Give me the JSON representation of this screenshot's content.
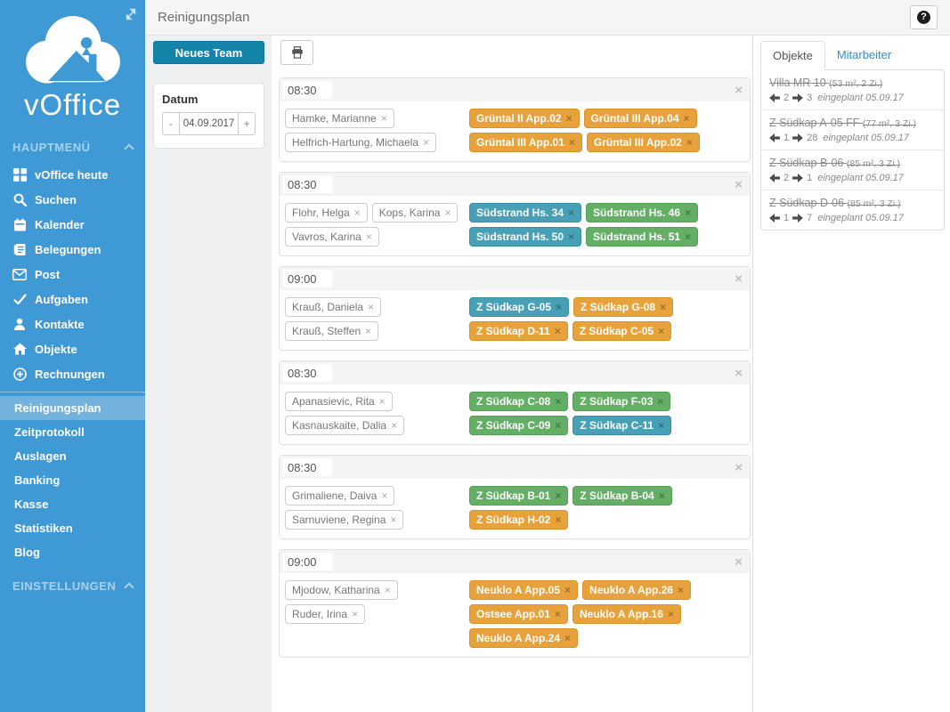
{
  "icons": {
    "close": "×"
  },
  "colors": {
    "sidebar_blue": "#3e99d5",
    "sidebar_selected": "#72b2dd",
    "accent_teal_button": "#1484a8",
    "tag_orange": "#e8a23c",
    "tag_teal": "#47a0b5",
    "tag_green": "#64af65",
    "panel_link_blue": "#2e8fd4"
  },
  "sidebar": {
    "logo_text": "vOffice",
    "main_section_label": "HAUPTMENÜ",
    "main_items": [
      {
        "label": "vOffice heute",
        "icon": "grid"
      },
      {
        "label": "Suchen",
        "icon": "search"
      },
      {
        "label": "Kalender",
        "icon": "calendar"
      },
      {
        "label": "Belegungen",
        "icon": "journal"
      },
      {
        "label": "Post",
        "icon": "envelope"
      },
      {
        "label": "Aufgaben",
        "icon": "check"
      },
      {
        "label": "Kontakte",
        "icon": "person"
      },
      {
        "label": "Objekte",
        "icon": "home"
      },
      {
        "label": "Rechnungen",
        "icon": "plus-circle"
      }
    ],
    "sub_items": [
      {
        "label": "Reinigungsplan",
        "active": true
      },
      {
        "label": "Zeitprotokoll",
        "active": false
      },
      {
        "label": "Auslagen",
        "active": false
      },
      {
        "label": "Banking",
        "active": false
      },
      {
        "label": "Kasse",
        "active": false
      },
      {
        "label": "Statistiken",
        "active": false
      },
      {
        "label": "Blog",
        "active": false
      }
    ],
    "settings_section_label": "EINSTELLUNGEN"
  },
  "header": {
    "title": "Reinigungsplan",
    "help_label": "?"
  },
  "toolbar": {
    "new_team_label": "Neues Team",
    "print_icon": "printer"
  },
  "datum": {
    "label": "Datum",
    "minus": "-",
    "value": "04.09.2017",
    "plus": "+"
  },
  "teams": [
    {
      "time": "08:30",
      "members": [
        "Hamke, Marianne",
        "Helfrich-Hartung, Michaela"
      ],
      "objects": [
        {
          "label": "Grüntal II App.02",
          "color": "orange"
        },
        {
          "label": "Grüntal III App.04",
          "color": "orange"
        },
        {
          "label": "Grüntal III App.01",
          "color": "orange"
        },
        {
          "label": "Grüntal III App.02",
          "color": "orange"
        }
      ]
    },
    {
      "time": "08:30",
      "members": [
        "Flohr, Helga",
        "Kops, Karina",
        "Vavros, Karina"
      ],
      "objects": [
        {
          "label": "Südstrand Hs. 34",
          "color": "teal"
        },
        {
          "label": "Südstrand Hs. 46",
          "color": "green"
        },
        {
          "label": "Südstrand Hs. 50",
          "color": "teal"
        },
        {
          "label": "Südstrand Hs. 51",
          "color": "green"
        }
      ]
    },
    {
      "time": "09:00",
      "members": [
        "Krauß, Daniela",
        "Krauß, Steffen"
      ],
      "objects": [
        {
          "label": "Z Südkap G-05",
          "color": "teal"
        },
        {
          "label": "Z Südkap G-08",
          "color": "orange"
        },
        {
          "label": "Z Südkap D-11",
          "color": "orange"
        },
        {
          "label": "Z Südkap C-05",
          "color": "orange"
        }
      ]
    },
    {
      "time": "08:30",
      "members": [
        "Apanasievic, Rita",
        "Kasnauskaite, Dalia"
      ],
      "objects": [
        {
          "label": "Z Südkap C-08",
          "color": "green"
        },
        {
          "label": "Z Südkap F-03",
          "color": "green"
        },
        {
          "label": "Z Südkap C-09",
          "color": "green"
        },
        {
          "label": "Z Südkap C-11",
          "color": "teal"
        }
      ]
    },
    {
      "time": "08:30",
      "members": [
        "Grimaliene, Daiva",
        "Sarnuviene, Regina"
      ],
      "objects": [
        {
          "label": "Z Südkap B-01",
          "color": "green"
        },
        {
          "label": "Z Südkap B-04",
          "color": "green"
        },
        {
          "label": "Z Südkap H-02",
          "color": "orange"
        }
      ]
    },
    {
      "time": "09:00",
      "members": [
        "Mjodow, Katharina",
        "Ruder, Irina"
      ],
      "objects": [
        {
          "label": "Neuklo A App.05",
          "color": "orange"
        },
        {
          "label": "Neuklo A App.26",
          "color": "orange"
        },
        {
          "label": "Ostsee App.01",
          "color": "orange"
        },
        {
          "label": "Neuklo A App.16",
          "color": "orange"
        },
        {
          "label": "Neuklo A App.24",
          "color": "orange"
        }
      ]
    }
  ],
  "panel": {
    "tabs": [
      {
        "label": "Objekte",
        "active": true
      },
      {
        "label": "Mitarbeiter",
        "active": false
      }
    ],
    "objects": [
      {
        "title": "Villa MR 10",
        "details": "(53 m², 2 Zi.)",
        "back": "2",
        "forward": "3",
        "note": "eingeplant 05.09.17"
      },
      {
        "title": "Z Südkap A-05 FF",
        "details": "(77 m², 3 Zi.)",
        "back": "1",
        "forward": "28",
        "note": "eingeplant 05.09.17"
      },
      {
        "title": "Z Südkap B-06",
        "details": "(85 m², 3 Zi.)",
        "back": "2",
        "forward": "1",
        "note": "eingeplant 05.09.17"
      },
      {
        "title": "Z Südkap D-06",
        "details": "(85 m², 3 Zi.)",
        "back": "1",
        "forward": "7",
        "note": "eingeplant 05.09.17"
      }
    ]
  }
}
